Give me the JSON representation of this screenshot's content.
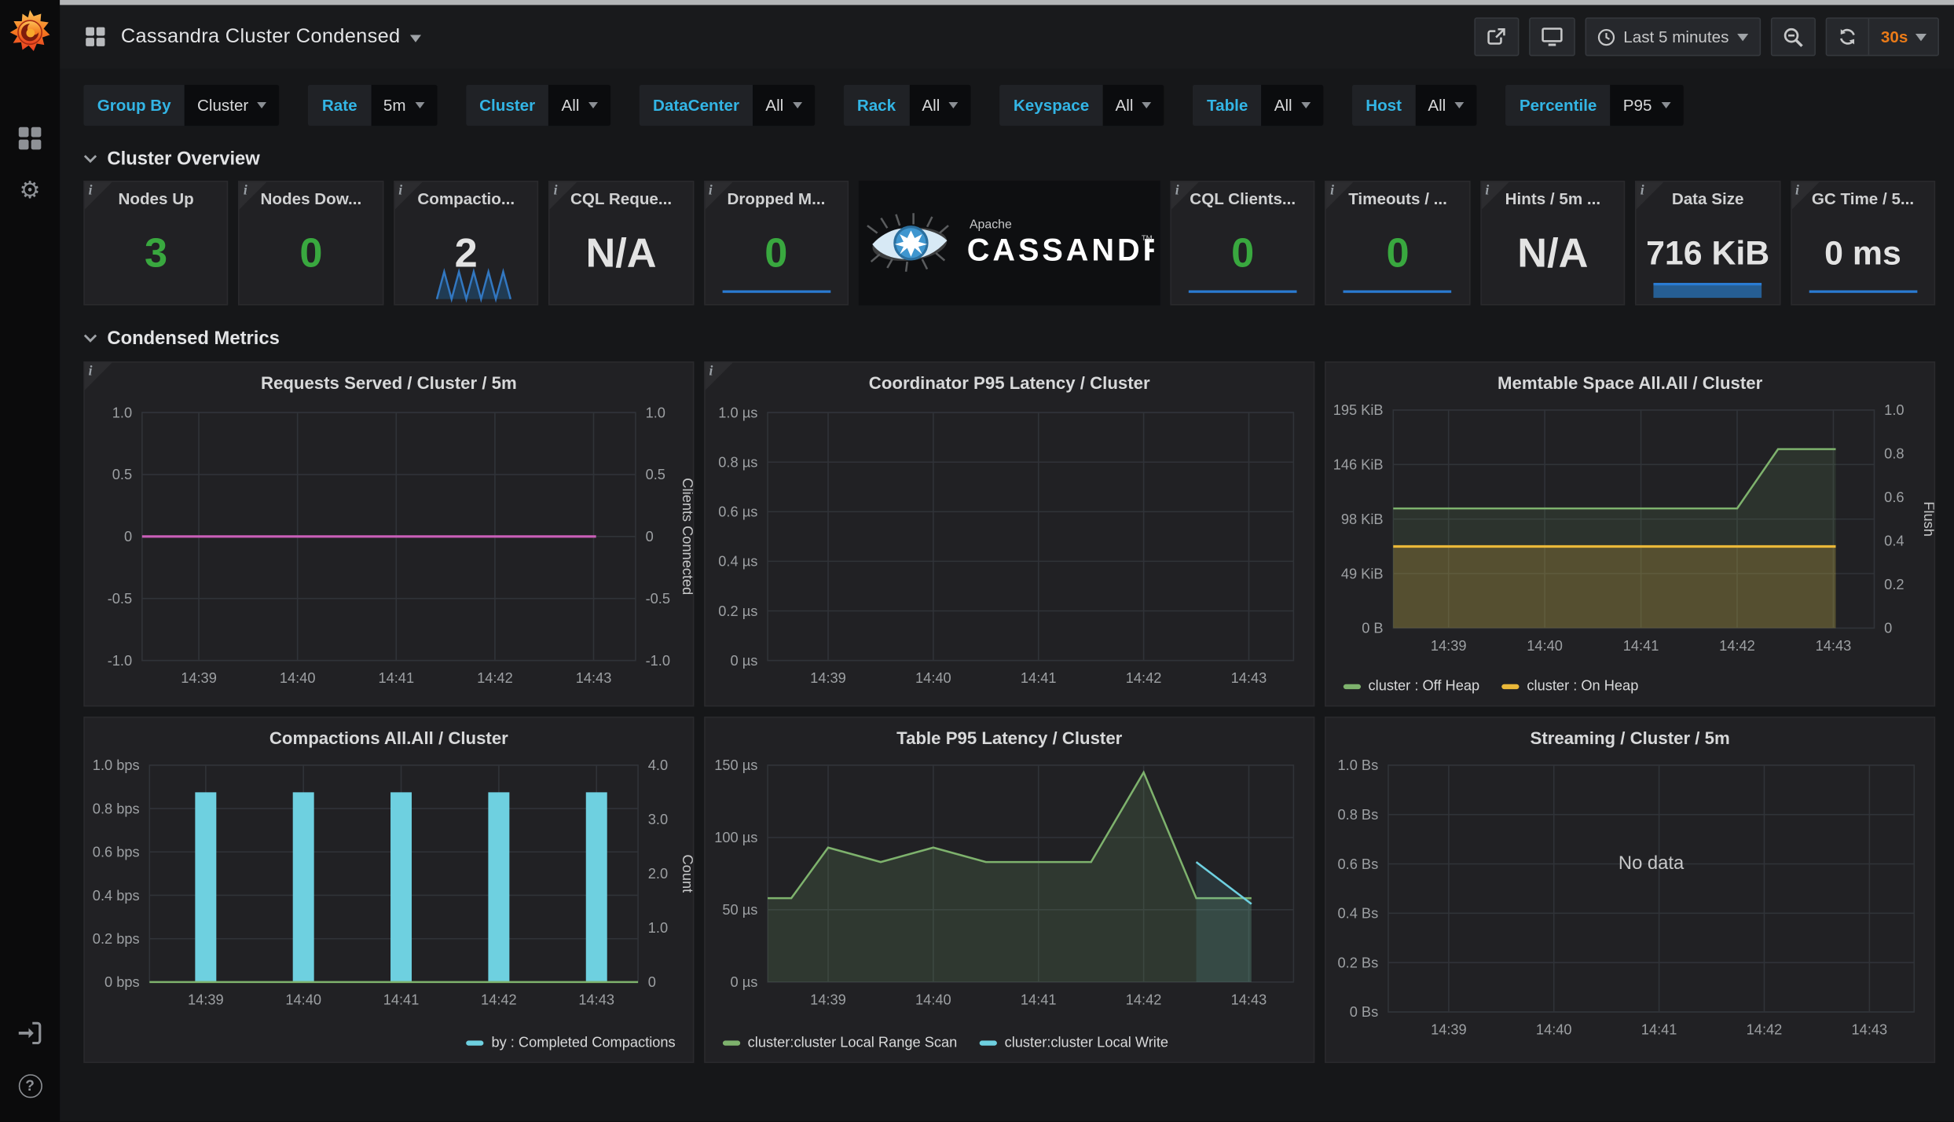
{
  "nav": {
    "title": "Cassandra Cluster Condensed",
    "time_range": "Last 5 minutes",
    "refresh": "30s"
  },
  "sections": [
    "Cluster Overview",
    "Condensed Metrics"
  ],
  "variables": [
    {
      "label": "Group By",
      "value": "Cluster"
    },
    {
      "label": "Rate",
      "value": "5m"
    },
    {
      "label": "Cluster",
      "value": "All"
    },
    {
      "label": "DataCenter",
      "value": "All"
    },
    {
      "label": "Rack",
      "value": "All"
    },
    {
      "label": "Keyspace",
      "value": "All"
    },
    {
      "label": "Table",
      "value": "All"
    },
    {
      "label": "Host",
      "value": "All"
    },
    {
      "label": "Percentile",
      "value": "P95"
    }
  ],
  "logo": {
    "apache": "Apache",
    "name": "CASSANDRA",
    "tm": "TM"
  },
  "colors": {
    "accent_cyan": "#33b5e5",
    "orange": "#eb7b18",
    "stat_green": "#39a83f",
    "stat_white": "#e3e3e3",
    "spark_blue": "#2a7bd2",
    "series_green": "#7eb26d",
    "series_yellow": "#eab839",
    "series_cyan": "#6ed0e0",
    "series_pink": "#c95fb8"
  },
  "stats": [
    {
      "title": "Nodes Up",
      "value": "3",
      "color": "green",
      "spark": "none",
      "info": true
    },
    {
      "title": "Nodes Dow...",
      "value": "0",
      "color": "green",
      "spark": "none",
      "info": true
    },
    {
      "title": "Compactio...",
      "value": "2",
      "color": "white",
      "spark": "zigzag",
      "info": true
    },
    {
      "title": "CQL Reque...",
      "value": "N/A",
      "color": "white",
      "spark": "none",
      "info": true
    },
    {
      "title": "Dropped M...",
      "value": "0",
      "color": "green",
      "spark": "line",
      "info": true
    },
    {
      "title": "CQL Clients...",
      "value": "0",
      "color": "green",
      "spark": "line",
      "info": true
    },
    {
      "title": "Timeouts / ...",
      "value": "0",
      "color": "green",
      "spark": "line",
      "info": true
    },
    {
      "title": "Hints / 5m ...",
      "value": "N/A",
      "color": "white",
      "spark": "none",
      "info": true
    },
    {
      "title": "Data Size",
      "value": "716 KiB",
      "color": "white",
      "spark": "bar",
      "info": true
    },
    {
      "title": "GC Time / 5...",
      "value": "0 ms",
      "color": "white",
      "spark": "line",
      "info": true
    }
  ],
  "chart_data": [
    {
      "id": "requests-served",
      "type": "line",
      "title": "Requests Served / Cluster / 5m",
      "ylim": [
        -1,
        1
      ],
      "yticks": [
        {
          "v": 1,
          "l": "1.0"
        },
        {
          "v": 0.5,
          "l": "0.5"
        },
        {
          "v": 0,
          "l": "0"
        },
        {
          "v": -0.5,
          "l": "-0.5"
        },
        {
          "v": -1,
          "l": "-1.0"
        }
      ],
      "right_ticks": [
        {
          "f": 1,
          "l": "1.0"
        },
        {
          "f": 0.75,
          "l": "0.5"
        },
        {
          "f": 0.5,
          "l": "0"
        },
        {
          "f": 0.25,
          "l": "-0.5"
        },
        {
          "f": 0,
          "l": "-1.0"
        }
      ],
      "right_label": "Clients Connected",
      "xticks": [
        "14:39",
        "14:40",
        "14:41",
        "14:42",
        "14:43"
      ],
      "series": [
        {
          "name": "Clients Connected",
          "color": "#c95fb8",
          "width": 2,
          "fill": 0,
          "points": [
            [
              0,
              0
            ],
            [
              0.92,
              0
            ]
          ]
        }
      ],
      "layout": {
        "l": 46,
        "r": 46,
        "t": 40,
        "b": 36
      },
      "info": true
    },
    {
      "id": "coordinator-p95-latency",
      "type": "line",
      "title": "Coordinator P95 Latency / Cluster",
      "ylim": [
        0,
        1
      ],
      "yticks": [
        {
          "v": 1,
          "l": "1.0 µs"
        },
        {
          "v": 0.8,
          "l": "0.8 µs"
        },
        {
          "v": 0.6,
          "l": "0.6 µs"
        },
        {
          "v": 0.4,
          "l": "0.4 µs"
        },
        {
          "v": 0.2,
          "l": "0.2 µs"
        },
        {
          "v": 0,
          "l": "0 µs"
        }
      ],
      "xticks": [
        "14:39",
        "14:40",
        "14:41",
        "14:42",
        "14:43"
      ],
      "series": [],
      "layout": {
        "l": 50,
        "r": 16,
        "t": 40,
        "b": 36
      },
      "info": true
    },
    {
      "id": "memtable-space",
      "type": "area",
      "title": "Memtable Space All.All / Cluster",
      "ylim": [
        0,
        195
      ],
      "yticks": [
        {
          "v": 195,
          "l": "195 KiB"
        },
        {
          "v": 146.25,
          "l": "146 KiB"
        },
        {
          "v": 97.5,
          "l": "98 KiB"
        },
        {
          "v": 48.75,
          "l": "49 KiB"
        },
        {
          "v": 0,
          "l": "0 B"
        }
      ],
      "right_ticks": [
        {
          "f": 1,
          "l": "1.0"
        },
        {
          "f": 0.8,
          "l": "0.8"
        },
        {
          "f": 0.6,
          "l": "0.6"
        },
        {
          "f": 0.4,
          "l": "0.4"
        },
        {
          "f": 0.2,
          "l": "0.2"
        },
        {
          "f": 0,
          "l": "0"
        }
      ],
      "right_label": "Flush",
      "xticks": [
        "14:39",
        "14:40",
        "14:41",
        "14:42",
        "14:43"
      ],
      "series": [
        {
          "name": "cluster : Off Heap",
          "color": "#7eb26d",
          "width": 1.6,
          "fill": 0.13,
          "points": [
            [
              0,
              107
            ],
            [
              0.715,
              107
            ],
            [
              0.8,
              160
            ],
            [
              0.92,
              160
            ]
          ]
        },
        {
          "name": "cluster : On Heap",
          "color": "#eab839",
          "width": 2,
          "fill": 0.22,
          "points": [
            [
              0,
              73
            ],
            [
              0.92,
              73
            ]
          ]
        }
      ],
      "legend": {
        "pos": "left",
        "items": [
          {
            "label": "cluster : Off Heap",
            "color": "#7eb26d"
          },
          {
            "label": "cluster : On Heap",
            "color": "#eab839"
          }
        ]
      },
      "layout": {
        "l": 54,
        "r": 48,
        "t": 38,
        "b": 62
      },
      "info": false
    },
    {
      "id": "compactions",
      "type": "bar",
      "title": "Compactions All.All / Cluster",
      "ylim": [
        0,
        1
      ],
      "yticks": [
        {
          "v": 1,
          "l": "1.0 bps"
        },
        {
          "v": 0.8,
          "l": "0.8 bps"
        },
        {
          "v": 0.6,
          "l": "0.6 bps"
        },
        {
          "v": 0.4,
          "l": "0.4 bps"
        },
        {
          "v": 0.2,
          "l": "0.2 bps"
        },
        {
          "v": 0,
          "l": "0 bps"
        }
      ],
      "right_ticks": [
        {
          "f": 1,
          "l": "4.0"
        },
        {
          "f": 0.75,
          "l": "3.0"
        },
        {
          "f": 0.5,
          "l": "2.0"
        },
        {
          "f": 0.25,
          "l": "1.0"
        },
        {
          "f": 0,
          "l": "0"
        }
      ],
      "right_label": "Count",
      "xticks": [
        "14:39",
        "14:40",
        "14:41",
        "14:42",
        "14:43"
      ],
      "bars": {
        "name": "by : Completed Compactions",
        "color": "#6ed0e0",
        "categories": [
          "14:39",
          "14:40",
          "14:41",
          "14:42",
          "14:43"
        ],
        "values": [
          3.5,
          3.5,
          3.5,
          3.5,
          3.5
        ],
        "bar_ylim": [
          0,
          4
        ]
      },
      "series": [
        {
          "name": "zero-line",
          "color": "#7eb26d",
          "width": 1.6,
          "fill": 0,
          "points": [
            [
              0,
              0
            ],
            [
              1,
              0
            ]
          ]
        }
      ],
      "legend": {
        "pos": "right",
        "items": [
          {
            "label": "by : Completed Compactions",
            "color": "#6ed0e0"
          }
        ]
      },
      "layout": {
        "l": 52,
        "r": 44,
        "t": 38,
        "b": 64
      },
      "info": false
    },
    {
      "id": "table-p95-latency",
      "type": "area",
      "title": "Table P95 Latency / Cluster",
      "ylim": [
        0,
        150
      ],
      "yticks": [
        {
          "v": 150,
          "l": "150 µs"
        },
        {
          "v": 100,
          "l": "100 µs"
        },
        {
          "v": 50,
          "l": "50 µs"
        },
        {
          "v": 0,
          "l": "0 µs"
        }
      ],
      "xticks": [
        "14:39",
        "14:40",
        "14:41",
        "14:42",
        "14:43"
      ],
      "series": [
        {
          "name": "cluster:cluster Local Range Scan",
          "color": "#7eb26d",
          "width": 1.6,
          "fill": 0.16,
          "points": [
            [
              0,
              58
            ],
            [
              0.045,
              58
            ],
            [
              0.115,
              93
            ],
            [
              0.215,
              83
            ],
            [
              0.315,
              93
            ],
            [
              0.415,
              83
            ],
            [
              0.615,
              83
            ],
            [
              0.715,
              145
            ],
            [
              0.815,
              58
            ],
            [
              0.92,
              58
            ]
          ]
        },
        {
          "name": "cluster:cluster Local Write",
          "color": "#6ed0e0",
          "width": 1.6,
          "fill": 0.12,
          "points": [
            [
              0.815,
              83
            ],
            [
              0.92,
              54
            ]
          ]
        }
      ],
      "legend": {
        "pos": "left",
        "items": [
          {
            "label": "cluster:cluster Local Range Scan",
            "color": "#7eb26d"
          },
          {
            "label": "cluster:cluster Local Write",
            "color": "#6ed0e0"
          }
        ]
      },
      "layout": {
        "l": 50,
        "r": 16,
        "t": 38,
        "b": 64
      },
      "info": false
    },
    {
      "id": "streaming",
      "type": "line",
      "title": "Streaming / Cluster / 5m",
      "ylim": [
        0,
        1
      ],
      "yticks": [
        {
          "v": 1,
          "l": "1.0 Bs"
        },
        {
          "v": 0.8,
          "l": "0.8 Bs"
        },
        {
          "v": 0.6,
          "l": "0.6 Bs"
        },
        {
          "v": 0.4,
          "l": "0.4 Bs"
        },
        {
          "v": 0.2,
          "l": "0.2 Bs"
        },
        {
          "v": 0,
          "l": "0 Bs"
        }
      ],
      "xticks": [
        "14:39",
        "14:40",
        "14:41",
        "14:42",
        "14:43"
      ],
      "series": [],
      "no_data": "No data",
      "layout": {
        "l": 50,
        "r": 16,
        "t": 38,
        "b": 40
      },
      "info": false
    }
  ]
}
